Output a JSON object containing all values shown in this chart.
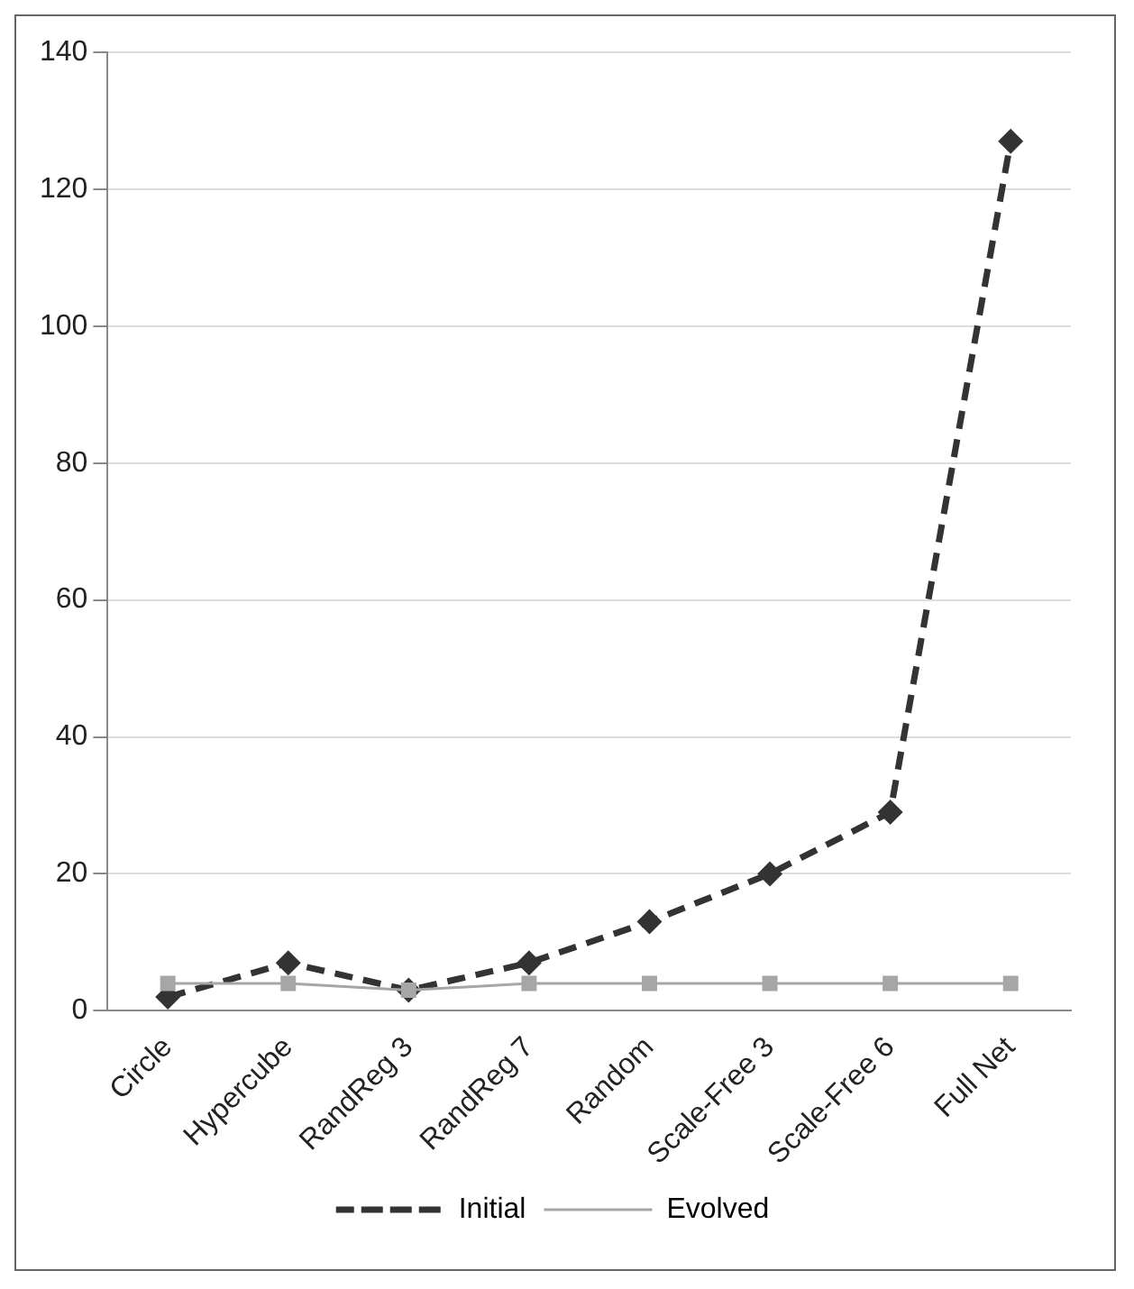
{
  "chart_data": {
    "type": "line",
    "categories": [
      "Circle",
      "Hypercube",
      "RandReg 3",
      "RandReg 7",
      "Random",
      "Scale-Free 3",
      "Scale-Free 6",
      "Full Net"
    ],
    "series": [
      {
        "name": "Initial",
        "color": "#333333",
        "values": [
          2,
          7,
          3,
          7,
          13,
          20,
          29,
          127
        ],
        "marker": "diamond",
        "line_style": "dashed"
      },
      {
        "name": "Evolved",
        "color": "#a6a6a6",
        "values": [
          4,
          4,
          3,
          4,
          4,
          4,
          4,
          4
        ],
        "marker": "square",
        "line_style": "solid"
      }
    ],
    "ylim": [
      0,
      140
    ],
    "yticks": [
      0,
      20,
      40,
      60,
      80,
      100,
      120,
      140
    ],
    "grid": "y",
    "legend": "bottom"
  }
}
